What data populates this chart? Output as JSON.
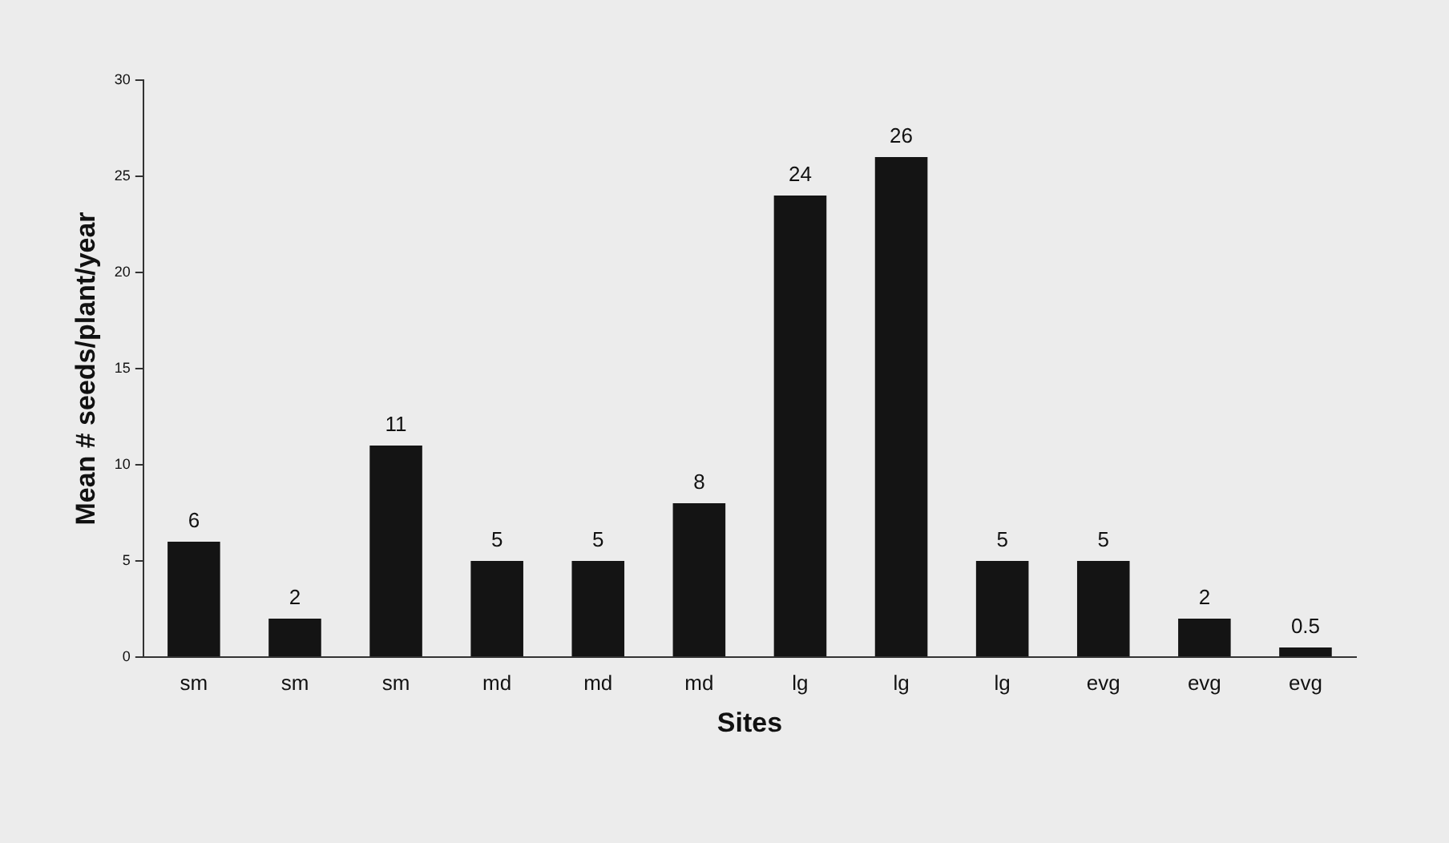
{
  "chart_data": {
    "type": "bar",
    "xlabel": "Sites",
    "ylabel": "Mean # seeds/plant/year",
    "categories": [
      "sm",
      "sm",
      "sm",
      "md",
      "md",
      "md",
      "lg",
      "lg",
      "lg",
      "evg",
      "evg",
      "evg"
    ],
    "values": [
      6,
      2,
      11,
      5,
      5,
      8,
      24,
      26,
      5,
      5,
      2,
      0.5
    ],
    "color": "#141414",
    "ylim": [
      0,
      30
    ],
    "yticks": [
      0,
      5,
      10,
      15,
      20,
      25,
      30
    ],
    "grid": false,
    "legend": false,
    "data_labels": true
  }
}
